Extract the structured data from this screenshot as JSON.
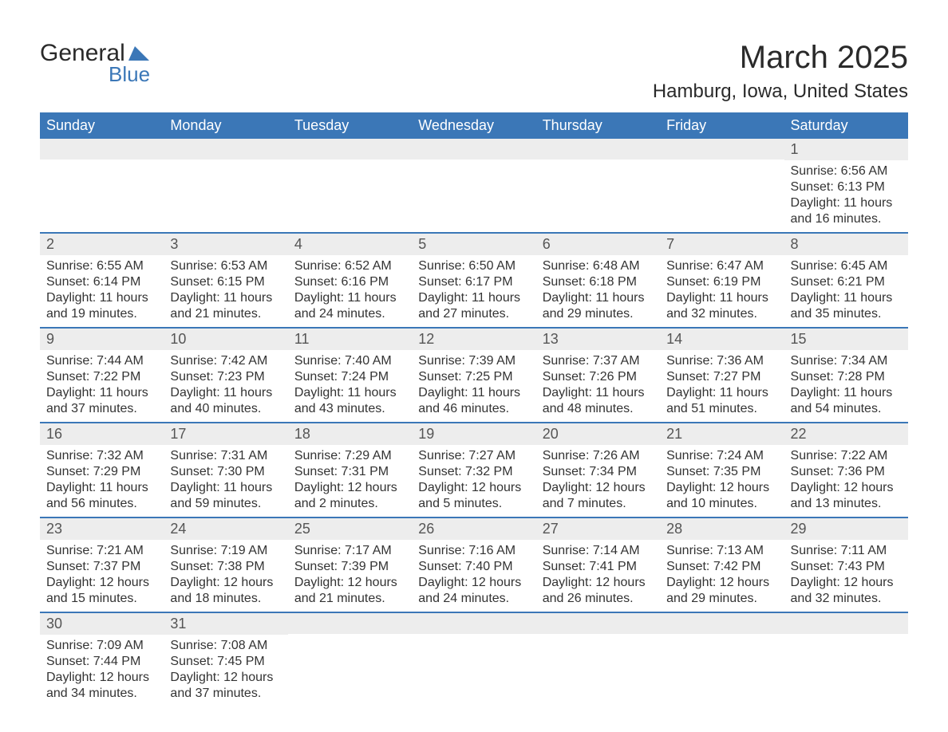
{
  "colors": {
    "header_bg": "#3b77b7",
    "header_text": "#ffffff",
    "daynum_bg": "#ededed",
    "daynum_text": "#555555",
    "body_text": "#333333",
    "row_divider": "#3b77b7",
    "page_bg": "#ffffff",
    "logo_blue": "#3b77b7"
  },
  "typography": {
    "month_title_pt": 40,
    "location_pt": 24,
    "dayhead_pt": 18,
    "daynum_pt": 18,
    "body_pt": 16,
    "font_family": "Arial"
  },
  "logo": {
    "main": "General",
    "sub": "Blue"
  },
  "title": {
    "month": "March 2025",
    "location": "Hamburg, Iowa, United States"
  },
  "dayheads": [
    "Sunday",
    "Monday",
    "Tuesday",
    "Wednesday",
    "Thursday",
    "Friday",
    "Saturday"
  ],
  "weeks": [
    [
      {
        "num": "",
        "sunrise": "",
        "sunset": "",
        "daylight": ""
      },
      {
        "num": "",
        "sunrise": "",
        "sunset": "",
        "daylight": ""
      },
      {
        "num": "",
        "sunrise": "",
        "sunset": "",
        "daylight": ""
      },
      {
        "num": "",
        "sunrise": "",
        "sunset": "",
        "daylight": ""
      },
      {
        "num": "",
        "sunrise": "",
        "sunset": "",
        "daylight": ""
      },
      {
        "num": "",
        "sunrise": "",
        "sunset": "",
        "daylight": ""
      },
      {
        "num": "1",
        "sunrise": "Sunrise: 6:56 AM",
        "sunset": "Sunset: 6:13 PM",
        "daylight": "Daylight: 11 hours and 16 minutes."
      }
    ],
    [
      {
        "num": "2",
        "sunrise": "Sunrise: 6:55 AM",
        "sunset": "Sunset: 6:14 PM",
        "daylight": "Daylight: 11 hours and 19 minutes."
      },
      {
        "num": "3",
        "sunrise": "Sunrise: 6:53 AM",
        "sunset": "Sunset: 6:15 PM",
        "daylight": "Daylight: 11 hours and 21 minutes."
      },
      {
        "num": "4",
        "sunrise": "Sunrise: 6:52 AM",
        "sunset": "Sunset: 6:16 PM",
        "daylight": "Daylight: 11 hours and 24 minutes."
      },
      {
        "num": "5",
        "sunrise": "Sunrise: 6:50 AM",
        "sunset": "Sunset: 6:17 PM",
        "daylight": "Daylight: 11 hours and 27 minutes."
      },
      {
        "num": "6",
        "sunrise": "Sunrise: 6:48 AM",
        "sunset": "Sunset: 6:18 PM",
        "daylight": "Daylight: 11 hours and 29 minutes."
      },
      {
        "num": "7",
        "sunrise": "Sunrise: 6:47 AM",
        "sunset": "Sunset: 6:19 PM",
        "daylight": "Daylight: 11 hours and 32 minutes."
      },
      {
        "num": "8",
        "sunrise": "Sunrise: 6:45 AM",
        "sunset": "Sunset: 6:21 PM",
        "daylight": "Daylight: 11 hours and 35 minutes."
      }
    ],
    [
      {
        "num": "9",
        "sunrise": "Sunrise: 7:44 AM",
        "sunset": "Sunset: 7:22 PM",
        "daylight": "Daylight: 11 hours and 37 minutes."
      },
      {
        "num": "10",
        "sunrise": "Sunrise: 7:42 AM",
        "sunset": "Sunset: 7:23 PM",
        "daylight": "Daylight: 11 hours and 40 minutes."
      },
      {
        "num": "11",
        "sunrise": "Sunrise: 7:40 AM",
        "sunset": "Sunset: 7:24 PM",
        "daylight": "Daylight: 11 hours and 43 minutes."
      },
      {
        "num": "12",
        "sunrise": "Sunrise: 7:39 AM",
        "sunset": "Sunset: 7:25 PM",
        "daylight": "Daylight: 11 hours and 46 minutes."
      },
      {
        "num": "13",
        "sunrise": "Sunrise: 7:37 AM",
        "sunset": "Sunset: 7:26 PM",
        "daylight": "Daylight: 11 hours and 48 minutes."
      },
      {
        "num": "14",
        "sunrise": "Sunrise: 7:36 AM",
        "sunset": "Sunset: 7:27 PM",
        "daylight": "Daylight: 11 hours and 51 minutes."
      },
      {
        "num": "15",
        "sunrise": "Sunrise: 7:34 AM",
        "sunset": "Sunset: 7:28 PM",
        "daylight": "Daylight: 11 hours and 54 minutes."
      }
    ],
    [
      {
        "num": "16",
        "sunrise": "Sunrise: 7:32 AM",
        "sunset": "Sunset: 7:29 PM",
        "daylight": "Daylight: 11 hours and 56 minutes."
      },
      {
        "num": "17",
        "sunrise": "Sunrise: 7:31 AM",
        "sunset": "Sunset: 7:30 PM",
        "daylight": "Daylight: 11 hours and 59 minutes."
      },
      {
        "num": "18",
        "sunrise": "Sunrise: 7:29 AM",
        "sunset": "Sunset: 7:31 PM",
        "daylight": "Daylight: 12 hours and 2 minutes."
      },
      {
        "num": "19",
        "sunrise": "Sunrise: 7:27 AM",
        "sunset": "Sunset: 7:32 PM",
        "daylight": "Daylight: 12 hours and 5 minutes."
      },
      {
        "num": "20",
        "sunrise": "Sunrise: 7:26 AM",
        "sunset": "Sunset: 7:34 PM",
        "daylight": "Daylight: 12 hours and 7 minutes."
      },
      {
        "num": "21",
        "sunrise": "Sunrise: 7:24 AM",
        "sunset": "Sunset: 7:35 PM",
        "daylight": "Daylight: 12 hours and 10 minutes."
      },
      {
        "num": "22",
        "sunrise": "Sunrise: 7:22 AM",
        "sunset": "Sunset: 7:36 PM",
        "daylight": "Daylight: 12 hours and 13 minutes."
      }
    ],
    [
      {
        "num": "23",
        "sunrise": "Sunrise: 7:21 AM",
        "sunset": "Sunset: 7:37 PM",
        "daylight": "Daylight: 12 hours and 15 minutes."
      },
      {
        "num": "24",
        "sunrise": "Sunrise: 7:19 AM",
        "sunset": "Sunset: 7:38 PM",
        "daylight": "Daylight: 12 hours and 18 minutes."
      },
      {
        "num": "25",
        "sunrise": "Sunrise: 7:17 AM",
        "sunset": "Sunset: 7:39 PM",
        "daylight": "Daylight: 12 hours and 21 minutes."
      },
      {
        "num": "26",
        "sunrise": "Sunrise: 7:16 AM",
        "sunset": "Sunset: 7:40 PM",
        "daylight": "Daylight: 12 hours and 24 minutes."
      },
      {
        "num": "27",
        "sunrise": "Sunrise: 7:14 AM",
        "sunset": "Sunset: 7:41 PM",
        "daylight": "Daylight: 12 hours and 26 minutes."
      },
      {
        "num": "28",
        "sunrise": "Sunrise: 7:13 AM",
        "sunset": "Sunset: 7:42 PM",
        "daylight": "Daylight: 12 hours and 29 minutes."
      },
      {
        "num": "29",
        "sunrise": "Sunrise: 7:11 AM",
        "sunset": "Sunset: 7:43 PM",
        "daylight": "Daylight: 12 hours and 32 minutes."
      }
    ],
    [
      {
        "num": "30",
        "sunrise": "Sunrise: 7:09 AM",
        "sunset": "Sunset: 7:44 PM",
        "daylight": "Daylight: 12 hours and 34 minutes."
      },
      {
        "num": "31",
        "sunrise": "Sunrise: 7:08 AM",
        "sunset": "Sunset: 7:45 PM",
        "daylight": "Daylight: 12 hours and 37 minutes."
      },
      {
        "num": "",
        "sunrise": "",
        "sunset": "",
        "daylight": ""
      },
      {
        "num": "",
        "sunrise": "",
        "sunset": "",
        "daylight": ""
      },
      {
        "num": "",
        "sunrise": "",
        "sunset": "",
        "daylight": ""
      },
      {
        "num": "",
        "sunrise": "",
        "sunset": "",
        "daylight": ""
      },
      {
        "num": "",
        "sunrise": "",
        "sunset": "",
        "daylight": ""
      }
    ]
  ]
}
